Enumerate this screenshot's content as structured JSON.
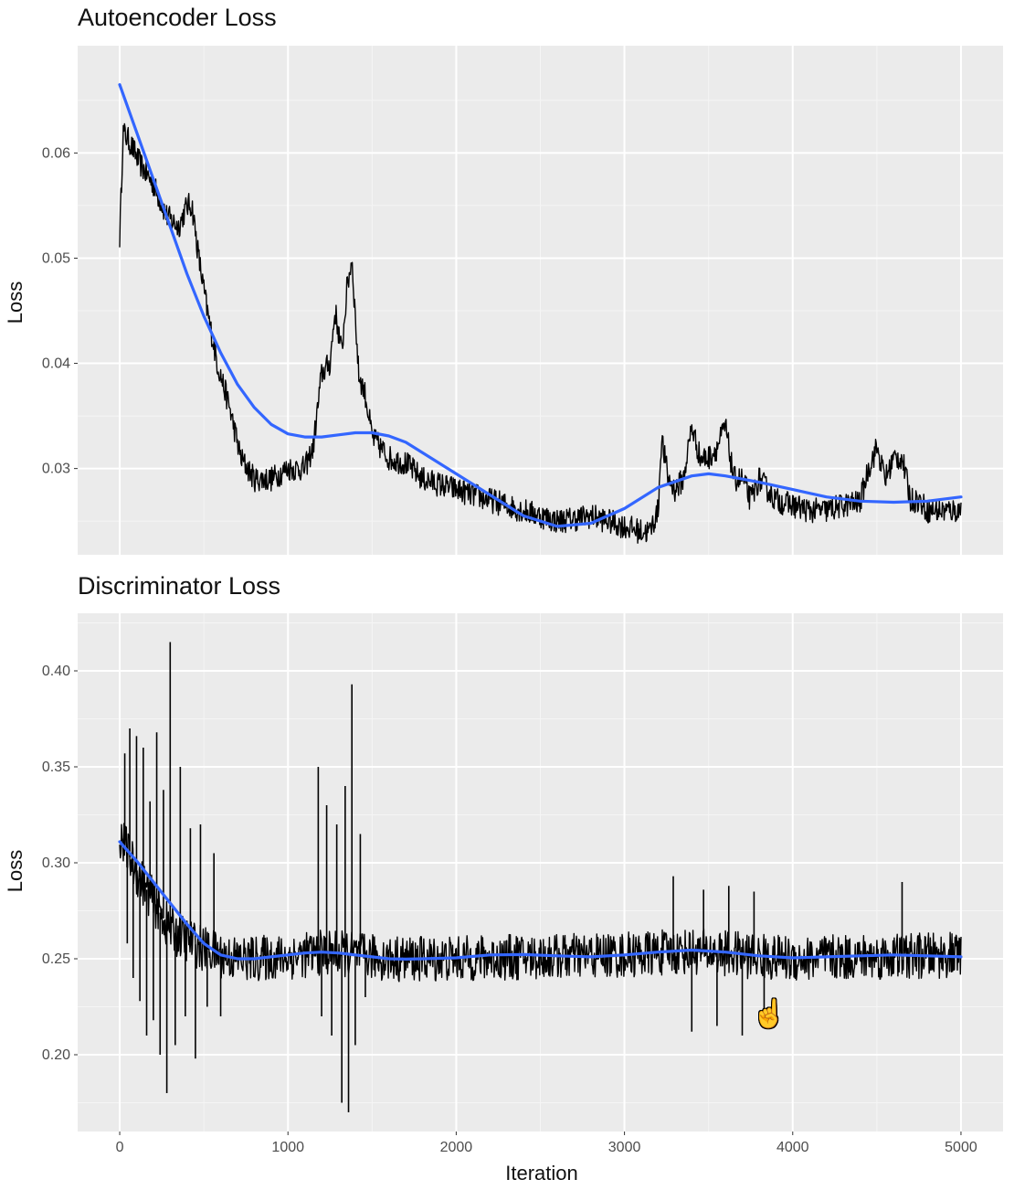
{
  "chart_data": [
    {
      "type": "line",
      "title": "Autoencoder Loss",
      "xlabel": "",
      "ylabel": "Loss",
      "xlim": [
        -250,
        5250
      ],
      "ylim": [
        0.0218,
        0.0702
      ],
      "x_ticks": [
        0,
        1000,
        2000,
        3000,
        4000,
        5000
      ],
      "y_ticks": [
        0.03,
        0.04,
        0.05,
        0.06
      ],
      "y_tick_labels": [
        "0.03",
        "0.04",
        "0.05",
        "0.06"
      ],
      "x_tick_labels_shown": false,
      "grid": true,
      "series": [
        {
          "kind": "raw",
          "color": "#000000",
          "noise_amplitude": 0.0012,
          "x": [
            0,
            20,
            60,
            120,
            200,
            280,
            350,
            400,
            430,
            470,
            520,
            580,
            650,
            720,
            800,
            900,
            1000,
            1100,
            1150,
            1200,
            1250,
            1280,
            1320,
            1350,
            1380,
            1420,
            1460,
            1500,
            1550,
            1600,
            1700,
            1800,
            1900,
            2000,
            2100,
            2200,
            2300,
            2400,
            2500,
            2600,
            2700,
            2800,
            2900,
            3000,
            3100,
            3150,
            3200,
            3220,
            3260,
            3300,
            3350,
            3400,
            3450,
            3500,
            3550,
            3600,
            3620,
            3650,
            3700,
            3750,
            3800,
            3850,
            3900,
            4000,
            4100,
            4200,
            4300,
            4400,
            4450,
            4500,
            4550,
            4600,
            4650,
            4700,
            4750,
            4800,
            4900,
            5000
          ],
          "y": [
            0.052,
            0.062,
            0.061,
            0.059,
            0.057,
            0.054,
            0.053,
            0.055,
            0.055,
            0.05,
            0.045,
            0.04,
            0.036,
            0.031,
            0.029,
            0.029,
            0.03,
            0.03,
            0.032,
            0.039,
            0.04,
            0.045,
            0.041,
            0.047,
            0.05,
            0.039,
            0.037,
            0.033,
            0.032,
            0.031,
            0.0305,
            0.029,
            0.0285,
            0.028,
            0.0275,
            0.027,
            0.0265,
            0.026,
            0.0255,
            0.025,
            0.0252,
            0.0255,
            0.025,
            0.0245,
            0.024,
            0.024,
            0.026,
            0.033,
            0.029,
            0.028,
            0.029,
            0.034,
            0.031,
            0.031,
            0.032,
            0.034,
            0.032,
            0.029,
            0.029,
            0.027,
            0.029,
            0.028,
            0.027,
            0.0265,
            0.026,
            0.026,
            0.0265,
            0.0268,
            0.03,
            0.032,
            0.029,
            0.031,
            0.031,
            0.027,
            0.027,
            0.026,
            0.026,
            0.026
          ]
        },
        {
          "kind": "smooth",
          "color": "#3366ff",
          "x": [
            0,
            100,
            200,
            300,
            400,
            500,
            600,
            700,
            800,
            900,
            1000,
            1100,
            1200,
            1300,
            1400,
            1500,
            1600,
            1700,
            1800,
            1900,
            2000,
            2200,
            2400,
            2600,
            2800,
            3000,
            3200,
            3400,
            3500,
            3600,
            3800,
            4000,
            4200,
            4400,
            4600,
            4800,
            5000
          ],
          "y": [
            0.0665,
            0.062,
            0.0575,
            0.053,
            0.0485,
            0.0445,
            0.041,
            0.038,
            0.0358,
            0.0342,
            0.0333,
            0.033,
            0.033,
            0.0332,
            0.0334,
            0.0334,
            0.0331,
            0.0325,
            0.0315,
            0.0305,
            0.0295,
            0.0275,
            0.0255,
            0.0245,
            0.0248,
            0.0262,
            0.0282,
            0.0293,
            0.0295,
            0.0293,
            0.0287,
            0.028,
            0.0273,
            0.0269,
            0.0268,
            0.0269,
            0.0273
          ]
        }
      ]
    },
    {
      "type": "line",
      "title": "Discriminator Loss",
      "xlabel": "Iteration",
      "ylabel": "Loss",
      "xlim": [
        -250,
        5250
      ],
      "ylim": [
        0.16,
        0.43
      ],
      "x_ticks": [
        0,
        1000,
        2000,
        3000,
        4000,
        5000
      ],
      "x_tick_labels": [
        "0",
        "1000",
        "2000",
        "3000",
        "4000",
        "5000"
      ],
      "y_ticks": [
        0.2,
        0.25,
        0.3,
        0.35,
        0.4
      ],
      "y_tick_labels": [
        "0.20",
        "0.25",
        "0.30",
        "0.35",
        "0.40"
      ],
      "x_tick_labels_shown": true,
      "grid": true,
      "series": [
        {
          "kind": "raw",
          "color": "#000000",
          "noise_amplitude": 0.012,
          "x": [
            0,
            100,
            200,
            300,
            400,
            500,
            600,
            700,
            800,
            1000,
            1200,
            1300,
            1400,
            1500,
            1600,
            2000,
            2500,
            3000,
            3200,
            3400,
            3600,
            3800,
            4000,
            4500,
            5000
          ],
          "y": [
            0.315,
            0.295,
            0.28,
            0.265,
            0.26,
            0.255,
            0.252,
            0.25,
            0.25,
            0.251,
            0.253,
            0.253,
            0.252,
            0.251,
            0.25,
            0.25,
            0.251,
            0.252,
            0.253,
            0.254,
            0.253,
            0.251,
            0.25,
            0.251,
            0.252
          ]
        },
        {
          "kind": "spikes",
          "color": "#000000",
          "x": [
            30,
            45,
            60,
            80,
            100,
            120,
            140,
            160,
            180,
            200,
            220,
            240,
            260,
            280,
            300,
            330,
            360,
            390,
            420,
            450,
            480,
            520,
            560,
            600,
            1180,
            1200,
            1230,
            1260,
            1290,
            1320,
            1340,
            1360,
            1380,
            1400,
            1430,
            1460,
            3290,
            3400,
            3470,
            3550,
            3620,
            3700,
            3770,
            3830,
            4650
          ],
          "y": [
            0.357,
            0.258,
            0.37,
            0.24,
            0.366,
            0.228,
            0.36,
            0.21,
            0.332,
            0.218,
            0.368,
            0.2,
            0.338,
            0.18,
            0.415,
            0.205,
            0.35,
            0.22,
            0.318,
            0.198,
            0.32,
            0.225,
            0.305,
            0.22,
            0.35,
            0.22,
            0.33,
            0.21,
            0.32,
            0.175,
            0.34,
            0.17,
            0.393,
            0.205,
            0.315,
            0.23,
            0.293,
            0.212,
            0.286,
            0.215,
            0.288,
            0.21,
            0.285,
            0.222,
            0.29
          ]
        },
        {
          "kind": "smooth",
          "color": "#3366ff",
          "x": [
            0,
            100,
            200,
            300,
            400,
            500,
            600,
            700,
            800,
            900,
            1000,
            1100,
            1200,
            1300,
            1400,
            1500,
            1600,
            1700,
            1800,
            2000,
            2200,
            2400,
            2600,
            2800,
            3000,
            3200,
            3400,
            3600,
            3800,
            4000,
            4200,
            4400,
            4600,
            4800,
            5000
          ],
          "y": [
            0.311,
            0.301,
            0.29,
            0.279,
            0.268,
            0.258,
            0.252,
            0.25,
            0.25,
            0.251,
            0.252,
            0.253,
            0.2535,
            0.253,
            0.252,
            0.251,
            0.25,
            0.2498,
            0.25,
            0.2505,
            0.252,
            0.2522,
            0.2515,
            0.251,
            0.252,
            0.2535,
            0.2545,
            0.2535,
            0.2515,
            0.2505,
            0.251,
            0.2515,
            0.252,
            0.2515,
            0.251
          ]
        }
      ]
    }
  ],
  "cursor": {
    "icon": "hand-pointer-icon",
    "glyph": "☝"
  }
}
